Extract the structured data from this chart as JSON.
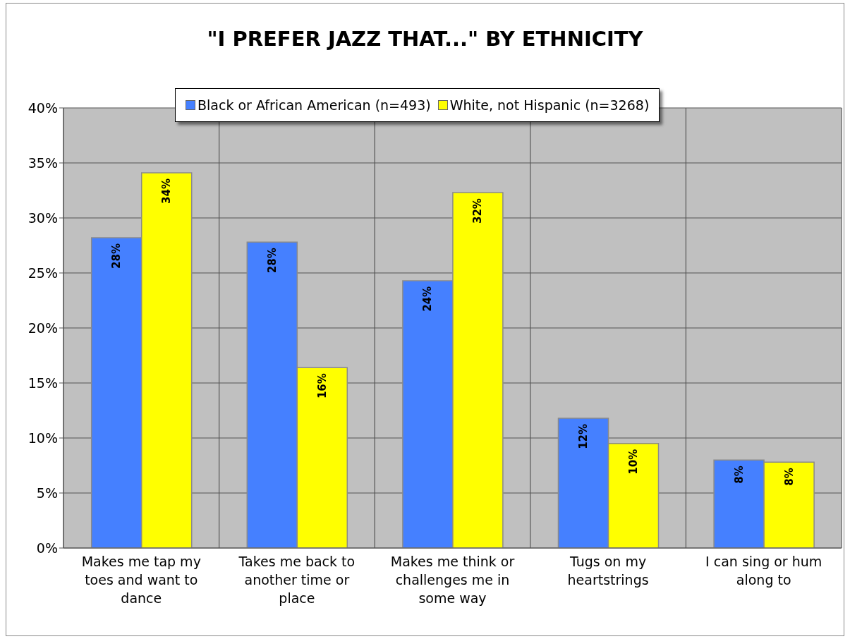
{
  "chart_data": {
    "type": "bar",
    "title": "\"I PREFER JAZZ THAT...\" BY ETHNICITY",
    "categories": [
      "Makes me tap my toes and want to dance",
      "Takes me back to another time or place",
      "Makes me think or challenges me in some way",
      "Tugs on my heartstrings",
      "I can sing or hum along to"
    ],
    "series": [
      {
        "name": "Black or African American (n=493)",
        "color": "#4580ff",
        "values": [
          28.2,
          27.8,
          24.3,
          11.8,
          8.0
        ],
        "value_labels": [
          "28%",
          "28%",
          "24%",
          "12%",
          "8%"
        ]
      },
      {
        "name": "White, not Hispanic (n=3268)",
        "color": "#ffff00",
        "values": [
          34.1,
          16.4,
          32.3,
          9.5,
          7.8
        ],
        "value_labels": [
          "34%",
          "16%",
          "32%",
          "10%",
          "8%"
        ]
      }
    ],
    "ylim": [
      0,
      40
    ],
    "yticks": [
      {
        "value": 0,
        "label": "0%"
      },
      {
        "value": 5,
        "label": "5%"
      },
      {
        "value": 10,
        "label": "10%"
      },
      {
        "value": 15,
        "label": "15%"
      },
      {
        "value": 20,
        "label": "20%"
      },
      {
        "value": 25,
        "label": "25%"
      },
      {
        "value": 30,
        "label": "30%"
      },
      {
        "value": 35,
        "label": "35%"
      },
      {
        "value": 40,
        "label": "40%"
      }
    ],
    "grid": true,
    "legend": "top"
  }
}
